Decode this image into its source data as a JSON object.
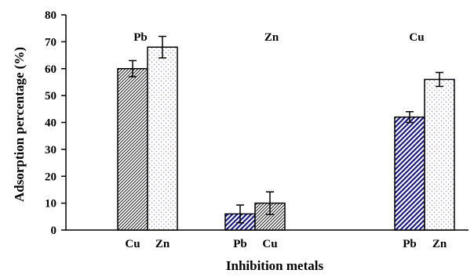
{
  "chart_data": {
    "type": "bar",
    "xlabel": "Inhibition metals",
    "ylabel": "Adsorption percentage (%)",
    "ylim": [
      0,
      80
    ],
    "yticks": [
      "0",
      "10",
      "20",
      "30",
      "40",
      "50",
      "60",
      "70",
      "80"
    ],
    "grid": false,
    "legend": "none",
    "groups": [
      {
        "title": "Pb",
        "bars": [
          {
            "label": "Cu",
            "value": 60,
            "error": 3,
            "pattern": "diagonal-hatch"
          },
          {
            "label": "Zn",
            "value": 68,
            "error": 4,
            "pattern": "dotted"
          }
        ]
      },
      {
        "title": "Zn",
        "bars": [
          {
            "label": "Pb",
            "value": 6,
            "error": 3.3,
            "pattern": "blue-stripes"
          },
          {
            "label": "Cu",
            "value": 10,
            "error": 4.2,
            "pattern": "diagonal-hatch"
          }
        ]
      },
      {
        "title": "Cu",
        "bars": [
          {
            "label": "Pb",
            "value": 42,
            "error": 2,
            "pattern": "blue-stripes"
          },
          {
            "label": "Zn",
            "value": 56,
            "error": 2.6,
            "pattern": "dotted"
          }
        ]
      }
    ],
    "colors": {
      "hatch": "#000000",
      "stripes": "#1a1a80",
      "dots": "#9a8fb0",
      "axis": "#000000"
    }
  }
}
